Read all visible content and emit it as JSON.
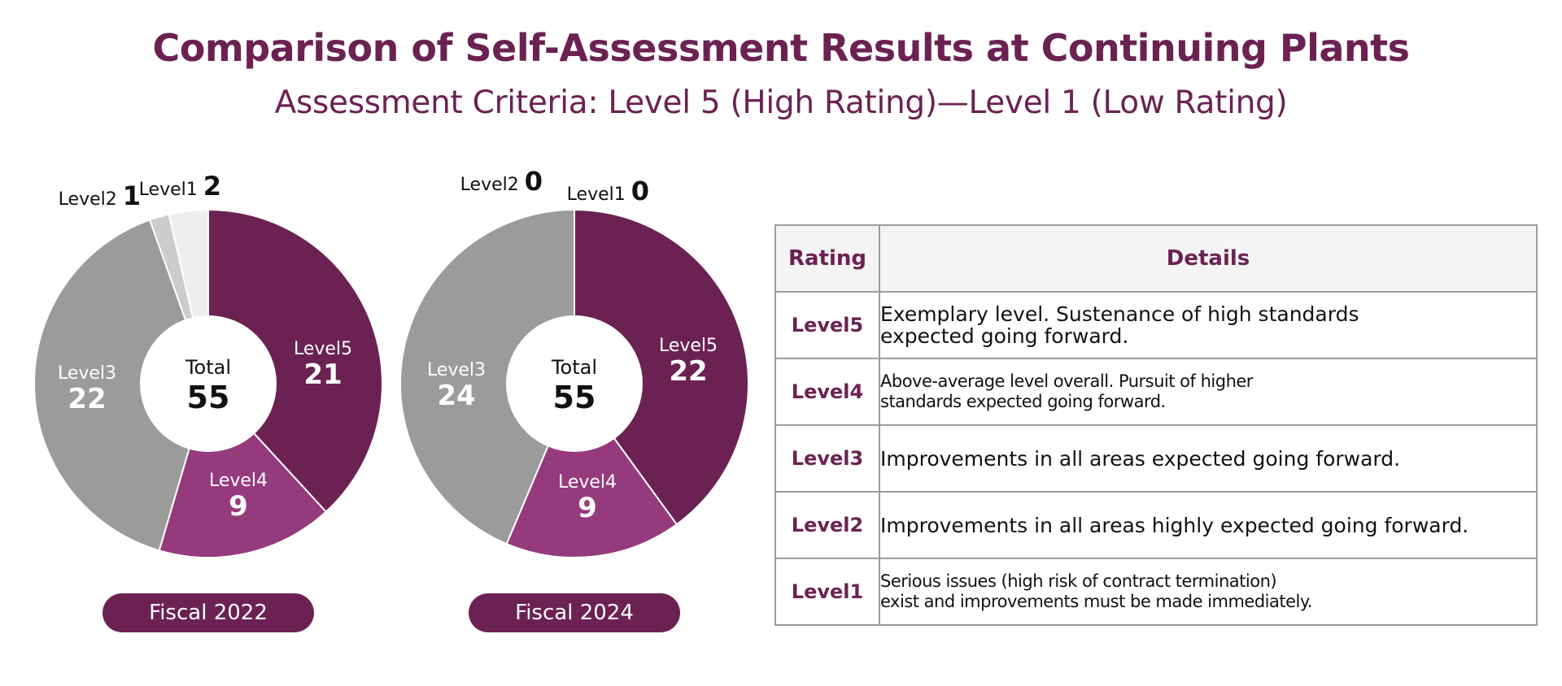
{
  "title": "Comparison of Self-Assessment Results at Continuing Plants",
  "subtitle": "Assessment Criteria: Level 5 (High Rating)—Level 1 (Low Rating)",
  "chart_data": [
    {
      "type": "pie",
      "label": "Fiscal 2022",
      "center_label": "Total",
      "total": 55,
      "slices": [
        {
          "name": "Level5",
          "value": 21,
          "color": "#6b2252",
          "text_color": "#ffffff"
        },
        {
          "name": "Level4",
          "value": 9,
          "color": "#963a7e",
          "text_color": "#ffffff"
        },
        {
          "name": "Level3",
          "value": 22,
          "color": "#9b9b9b",
          "text_color": "#ffffff"
        },
        {
          "name": "Level2",
          "value": 1,
          "color": "#cccccc",
          "text_color": "#111111"
        },
        {
          "name": "Level1",
          "value": 2,
          "color": "#eeeeee",
          "text_color": "#111111"
        }
      ]
    },
    {
      "type": "pie",
      "label": "Fiscal 2024",
      "center_label": "Total",
      "total": 55,
      "slices": [
        {
          "name": "Level5",
          "value": 22,
          "color": "#6b2252",
          "text_color": "#ffffff"
        },
        {
          "name": "Level4",
          "value": 9,
          "color": "#963a7e",
          "text_color": "#ffffff"
        },
        {
          "name": "Level3",
          "value": 24,
          "color": "#9b9b9b",
          "text_color": "#ffffff"
        },
        {
          "name": "Level2",
          "value": 0,
          "color": "#cccccc",
          "text_color": "#111111"
        },
        {
          "name": "Level1",
          "value": 0,
          "color": "#eeeeee",
          "text_color": "#111111"
        }
      ]
    }
  ],
  "table": {
    "headers": [
      "Rating",
      "Details"
    ],
    "rows": [
      {
        "level": "Level5",
        "line1": "Exemplary level. Sustenance of high standards",
        "line2": "expected going forward."
      },
      {
        "level": "Level4",
        "line1": "Above-average level overall. Pursuit of higher",
        "line2": "standards expected going forward."
      },
      {
        "level": "Level3",
        "line1": "Improvements in all areas expected going forward.",
        "line2": ""
      },
      {
        "level": "Level2",
        "line1": "Improvements in all areas highly expected going forward.",
        "line2": ""
      },
      {
        "level": "Level1",
        "line1": "Serious issues (high risk of contract termination)",
        "line2": "exist and improvements must be made immediately."
      }
    ]
  }
}
